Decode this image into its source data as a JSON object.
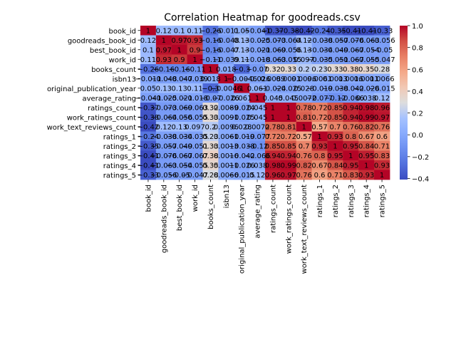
{
  "chart_data": {
    "type": "heatmap",
    "title": "Correlation Heatmap for goodreads.csv",
    "xlabel": "",
    "ylabel": "",
    "labels": [
      "book_id",
      "goodreads_book_id",
      "best_book_id",
      "work_id",
      "books_count",
      "isbn13",
      "original_publication_year",
      "average_rating",
      "ratings_count",
      "work_ratings_count",
      "work_text_reviews_count",
      "ratings_1",
      "ratings_2",
      "ratings_3",
      "ratings_4",
      "ratings_5"
    ],
    "colormap": "coolwarm",
    "vmin": -0.41,
    "vmax": 1.0,
    "colorbar_ticks": [
      1.0,
      0.8,
      0.6,
      0.4,
      0.2,
      0.0,
      -0.2,
      -0.4
    ],
    "colorbar_tick_labels": [
      "1.0",
      "0.8",
      "0.6",
      "0.4",
      "0.2",
      "0.0",
      "−0.2",
      "−0.4"
    ],
    "values": [
      [
        1,
        0.12,
        0.1,
        0.11,
        -0.26,
        -0.011,
        0.05,
        -0.041,
        -0.37,
        -0.38,
        -0.42,
        -0.24,
        -0.35,
        -0.41,
        -0.41,
        -0.33
      ],
      [
        0.12,
        1,
        0.97,
        0.93,
        -0.16,
        -0.048,
        0.13,
        -0.025,
        -0.073,
        -0.064,
        0.12,
        -0.038,
        -0.057,
        -0.076,
        -0.063,
        -0.056
      ],
      [
        0.1,
        0.97,
        1,
        0.9,
        -0.16,
        -0.047,
        0.13,
        -0.021,
        -0.069,
        -0.056,
        0.13,
        -0.034,
        -0.049,
        -0.067,
        -0.054,
        -0.05
      ],
      [
        0.11,
        0.93,
        0.9,
        1,
        -0.11,
        -0.039,
        0.11,
        -0.018,
        -0.063,
        -0.055,
        0.097,
        -0.035,
        -0.051,
        -0.067,
        -0.055,
        -0.047
      ],
      [
        -0.26,
        -0.16,
        -0.16,
        -0.11,
        1,
        0.018,
        -0.3,
        -0.07,
        0.32,
        0.33,
        0.2,
        0.23,
        0.33,
        0.38,
        0.35,
        0.28
      ],
      [
        -0.011,
        -0.048,
        -0.047,
        -0.039,
        0.018,
        1,
        -0.0046,
        -0.026,
        0.0089,
        0.0091,
        0.0096,
        0.0061,
        0.0013,
        0.0016,
        0.0011,
        0.0066
      ],
      [
        0.05,
        0.13,
        0.13,
        0.11,
        -0.3,
        -0.0046,
        1,
        0.061,
        -0.024,
        -0.025,
        0.028,
        -0.019,
        -0.038,
        -0.042,
        -0.026,
        -0.015
      ],
      [
        -0.041,
        -0.025,
        -0.021,
        -0.018,
        -0.07,
        -0.026,
        0.061,
        1,
        0.045,
        0.045,
        0.0072,
        -0.077,
        -0.12,
        -0.066,
        0.038,
        0.12
      ],
      [
        -0.37,
        -0.073,
        -0.069,
        -0.063,
        0.32,
        0.0089,
        -0.024,
        0.045,
        1,
        1,
        0.78,
        0.72,
        0.85,
        0.94,
        0.98,
        0.96
      ],
      [
        -0.38,
        -0.064,
        -0.056,
        -0.055,
        0.33,
        0.0091,
        -0.025,
        0.045,
        1,
        1,
        0.81,
        0.72,
        0.85,
        0.94,
        0.99,
        0.97
      ],
      [
        -0.42,
        0.12,
        0.13,
        0.097,
        0.2,
        0.0096,
        0.028,
        0.0072,
        0.78,
        0.81,
        1,
        0.57,
        0.7,
        0.76,
        0.82,
        0.76
      ],
      [
        -0.24,
        -0.038,
        -0.034,
        -0.035,
        0.23,
        0.0061,
        -0.019,
        -0.077,
        0.72,
        0.72,
        0.57,
        1,
        0.93,
        0.8,
        0.67,
        0.6
      ],
      [
        -0.35,
        -0.057,
        -0.049,
        -0.051,
        0.33,
        0.0013,
        -0.038,
        -0.12,
        0.85,
        0.85,
        0.7,
        0.93,
        1,
        0.95,
        0.84,
        0.71
      ],
      [
        -0.41,
        -0.076,
        -0.067,
        -0.067,
        0.38,
        0.0016,
        -0.042,
        -0.066,
        0.94,
        0.94,
        0.76,
        0.8,
        0.95,
        1,
        0.95,
        0.83
      ],
      [
        -0.41,
        -0.063,
        -0.054,
        -0.055,
        0.35,
        0.0011,
        -0.026,
        0.038,
        0.98,
        0.99,
        0.82,
        0.67,
        0.84,
        0.95,
        1,
        0.93
      ],
      [
        -0.33,
        -0.056,
        -0.05,
        -0.047,
        0.28,
        0.0066,
        -0.015,
        0.12,
        0.96,
        0.97,
        0.76,
        0.6,
        0.71,
        0.83,
        0.93,
        1
      ]
    ]
  }
}
